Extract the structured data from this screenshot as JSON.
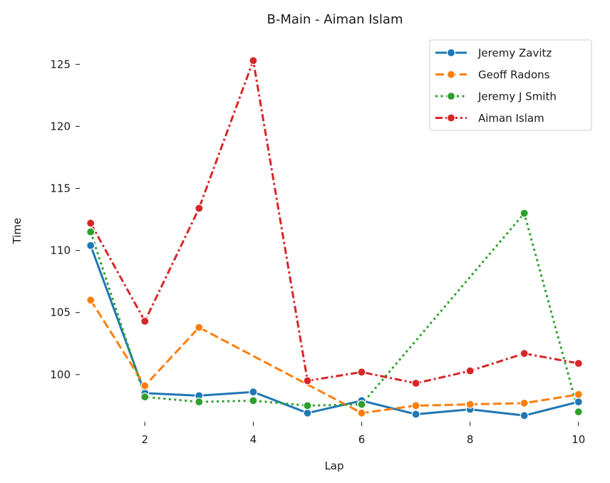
{
  "chart_data": {
    "type": "line",
    "title": "B-Main - Aiman Islam",
    "xlabel": "Lap",
    "ylabel": "Time",
    "xlim": [
      0.8,
      10.2
    ],
    "ylim": [
      96.2,
      127.2
    ],
    "xticks": [
      2,
      4,
      6,
      8,
      10
    ],
    "yticks": [
      100,
      105,
      110,
      115,
      120,
      125
    ],
    "grid": false,
    "legend_position": "top-right",
    "x": [
      1,
      2,
      3,
      4,
      5,
      6,
      7,
      8,
      9,
      10
    ],
    "series": [
      {
        "name": "Jeremy Zavitz",
        "color": "#1f77b4",
        "dash": "solid",
        "values": [
          110.4,
          98.5,
          98.3,
          98.6,
          96.9,
          97.9,
          96.8,
          97.2,
          96.7,
          97.8
        ]
      },
      {
        "name": "Geoff Radons",
        "color": "#ff7f0e",
        "dash": "dashed",
        "values": [
          106.0,
          99.1,
          103.8,
          null,
          null,
          96.9,
          97.5,
          97.6,
          97.7,
          98.4
        ]
      },
      {
        "name": "Jeremy J Smith",
        "color": "#2ca02c",
        "dash": "dotted",
        "values": [
          111.5,
          98.2,
          97.8,
          97.9,
          97.5,
          97.6,
          null,
          null,
          113.0,
          97.0
        ]
      },
      {
        "name": "Aiman Islam",
        "color": "#d62728",
        "dash": "dashdot",
        "values": [
          112.2,
          104.3,
          113.4,
          125.3,
          99.5,
          100.2,
          99.3,
          100.3,
          101.7,
          100.9
        ]
      }
    ]
  }
}
